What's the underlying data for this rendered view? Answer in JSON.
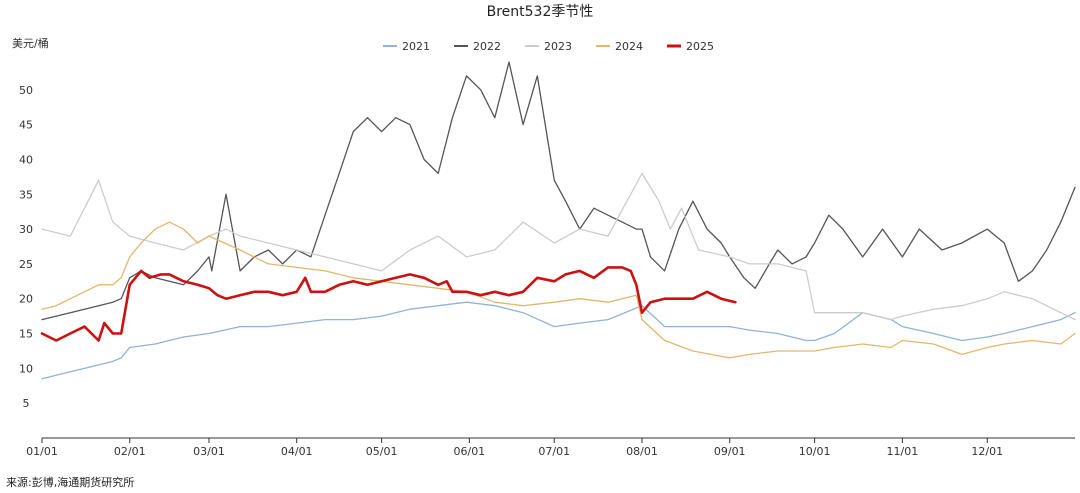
{
  "chart_data": {
    "type": "line",
    "title": "Brent532季节性",
    "ylabel": "美元/桶",
    "source": "来源:彭博,海通期货研究所",
    "ylim": [
      0,
      55
    ],
    "xlim": [
      0,
      365
    ],
    "y_ticks": [
      5,
      10,
      15,
      20,
      25,
      30,
      35,
      40,
      45,
      50
    ],
    "x_ticks": [
      {
        "label": "01/01",
        "day": 0
      },
      {
        "label": "02/01",
        "day": 31
      },
      {
        "label": "03/01",
        "day": 59
      },
      {
        "label": "04/01",
        "day": 90
      },
      {
        "label": "05/01",
        "day": 120
      },
      {
        "label": "06/01",
        "day": 151
      },
      {
        "label": "07/01",
        "day": 181
      },
      {
        "label": "08/01",
        "day": 212
      },
      {
        "label": "09/01",
        "day": 243
      },
      {
        "label": "10/01",
        "day": 273
      },
      {
        "label": "11/01",
        "day": 304
      },
      {
        "label": "12/01",
        "day": 334
      }
    ],
    "grid": false,
    "legend_position": "top-center",
    "series": [
      {
        "name": "2021",
        "color": "#8fb3d9",
        "x": [
          0,
          5,
          10,
          15,
          20,
          25,
          28,
          31,
          40,
          50,
          59,
          70,
          80,
          90,
          100,
          110,
          120,
          130,
          140,
          150,
          160,
          170,
          181,
          190,
          200,
          212,
          220,
          230,
          243,
          250,
          260,
          270,
          273,
          280,
          290,
          300,
          304,
          315,
          325,
          334,
          340,
          350,
          360,
          365
        ],
        "y": [
          8.5,
          9,
          9.5,
          10,
          10.5,
          11,
          11.5,
          13,
          13.5,
          14.5,
          15,
          16,
          16,
          16.5,
          17,
          17,
          17.5,
          18.5,
          19,
          19.5,
          19,
          18,
          16,
          16.5,
          17,
          19,
          16,
          16,
          16,
          15.5,
          15,
          14,
          14,
          15,
          18,
          17,
          16,
          15,
          14,
          14.5,
          15,
          16,
          17,
          18
        ]
      },
      {
        "name": "2022",
        "color": "#555555",
        "x": [
          0,
          10,
          20,
          25,
          28,
          31,
          35,
          40,
          45,
          50,
          55,
          59,
          60,
          65,
          70,
          75,
          80,
          85,
          90,
          95,
          100,
          105,
          110,
          115,
          120,
          125,
          130,
          135,
          140,
          145,
          150,
          155,
          160,
          165,
          170,
          175,
          181,
          185,
          190,
          195,
          200,
          205,
          210,
          212,
          215,
          220,
          225,
          230,
          235,
          240,
          243,
          248,
          252,
          257,
          260,
          265,
          270,
          273,
          278,
          283,
          290,
          297,
          304,
          310,
          318,
          325,
          334,
          340,
          345,
          350,
          355,
          360,
          365
        ],
        "y": [
          17,
          18,
          19,
          19.5,
          20,
          23,
          24,
          23,
          22.5,
          22,
          24,
          26,
          24,
          35,
          24,
          26,
          27,
          25,
          27,
          26,
          32,
          38,
          44,
          46,
          44,
          46,
          45,
          40,
          38,
          46,
          52,
          50,
          46,
          54,
          45,
          52,
          37,
          34,
          30,
          33,
          32,
          31,
          30,
          30,
          26,
          24,
          30,
          34,
          30,
          28,
          26,
          23,
          21.5,
          25,
          27,
          25,
          26,
          28,
          32,
          30,
          26,
          30,
          26,
          30,
          27,
          28,
          30,
          28,
          22.5,
          24,
          27,
          31,
          36
        ]
      },
      {
        "name": "2023",
        "color": "#cccccc",
        "x": [
          0,
          10,
          20,
          25,
          31,
          40,
          50,
          59,
          65,
          70,
          80,
          90,
          100,
          110,
          120,
          130,
          140,
          150,
          160,
          170,
          181,
          190,
          200,
          212,
          218,
          222,
          226,
          232,
          243,
          250,
          260,
          270,
          273,
          280,
          290,
          300,
          304,
          315,
          325,
          334,
          340,
          350,
          360,
          365
        ],
        "y": [
          30,
          29,
          37,
          31,
          29,
          28,
          27,
          29,
          30,
          29,
          28,
          27,
          26,
          25,
          24,
          27,
          29,
          26,
          27,
          31,
          28,
          30,
          29,
          38,
          34,
          30,
          33,
          27,
          26,
          25,
          25,
          24,
          18,
          18,
          18,
          17,
          17.5,
          18.5,
          19,
          20,
          21,
          20,
          18,
          17
        ]
      },
      {
        "name": "2024",
        "color": "#e3b66e",
        "x": [
          0,
          5,
          10,
          15,
          20,
          25,
          28,
          31,
          35,
          40,
          45,
          50,
          55,
          59,
          70,
          80,
          90,
          100,
          110,
          120,
          130,
          140,
          150,
          160,
          170,
          181,
          190,
          200,
          210,
          212,
          220,
          230,
          243,
          250,
          260,
          270,
          273,
          280,
          290,
          300,
          304,
          315,
          325,
          334,
          340,
          350,
          360,
          365
        ],
        "y": [
          18.5,
          19,
          20,
          21,
          22,
          22,
          23,
          26,
          28,
          30,
          31,
          30,
          28,
          29,
          27,
          25,
          24.5,
          24,
          23,
          22.5,
          22,
          21.5,
          21,
          19.5,
          19,
          19.5,
          20,
          19.5,
          20.5,
          17,
          14,
          12.5,
          11.5,
          12,
          12.5,
          12.5,
          12.5,
          13,
          13.5,
          13,
          14,
          13.5,
          12,
          13,
          13.5,
          14,
          13.5,
          15
        ]
      },
      {
        "name": "2025",
        "color": "#cc1111",
        "x": [
          0,
          5,
          10,
          15,
          20,
          22,
          25,
          28,
          31,
          35,
          38,
          42,
          45,
          50,
          55,
          59,
          62,
          65,
          70,
          75,
          80,
          85,
          90,
          93,
          95,
          100,
          105,
          110,
          115,
          120,
          125,
          130,
          135,
          140,
          143,
          145,
          150,
          155,
          160,
          165,
          170,
          175,
          181,
          185,
          190,
          195,
          200,
          205,
          208,
          210,
          212,
          215,
          220,
          225,
          230,
          235,
          240,
          245
        ],
        "y": [
          15,
          14,
          15,
          16,
          14,
          16.5,
          15,
          15,
          22,
          24,
          23,
          23.5,
          23.5,
          22.5,
          22,
          21.5,
          20.5,
          20,
          20.5,
          21,
          21,
          20.5,
          21,
          23,
          21,
          21,
          22,
          22.5,
          22,
          22.5,
          23,
          23.5,
          23,
          22,
          22.5,
          21,
          21,
          20.5,
          21,
          20.5,
          21,
          23,
          22.5,
          23.5,
          24,
          23,
          24.5,
          24.5,
          24,
          22,
          18,
          19.5,
          20,
          20,
          20,
          21,
          20,
          19.5
        ]
      }
    ]
  }
}
